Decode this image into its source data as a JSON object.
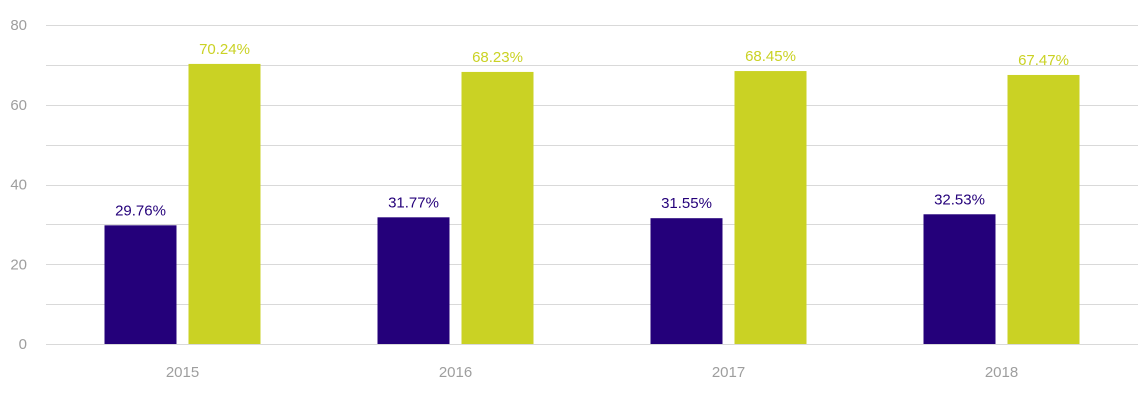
{
  "chart_data": {
    "type": "bar",
    "title": "",
    "xlabel": "",
    "ylabel": "",
    "categories": [
      "2015",
      "2016",
      "2017",
      "2018"
    ],
    "ylim": [
      0,
      80
    ],
    "yticks": [
      0,
      20,
      40,
      60,
      80
    ],
    "grid": true,
    "legend": "none",
    "series": [
      {
        "color": "#24007a",
        "values": [
          29.76,
          31.77,
          31.55,
          32.53
        ],
        "labels": [
          "29.76%",
          "31.77%",
          "31.55%",
          "32.53%"
        ]
      },
      {
        "color": "#cad224",
        "values": [
          70.24,
          68.23,
          68.45,
          67.47
        ],
        "labels": [
          "70.24%",
          "68.23%",
          "68.45%",
          "67.47%"
        ]
      }
    ]
  }
}
